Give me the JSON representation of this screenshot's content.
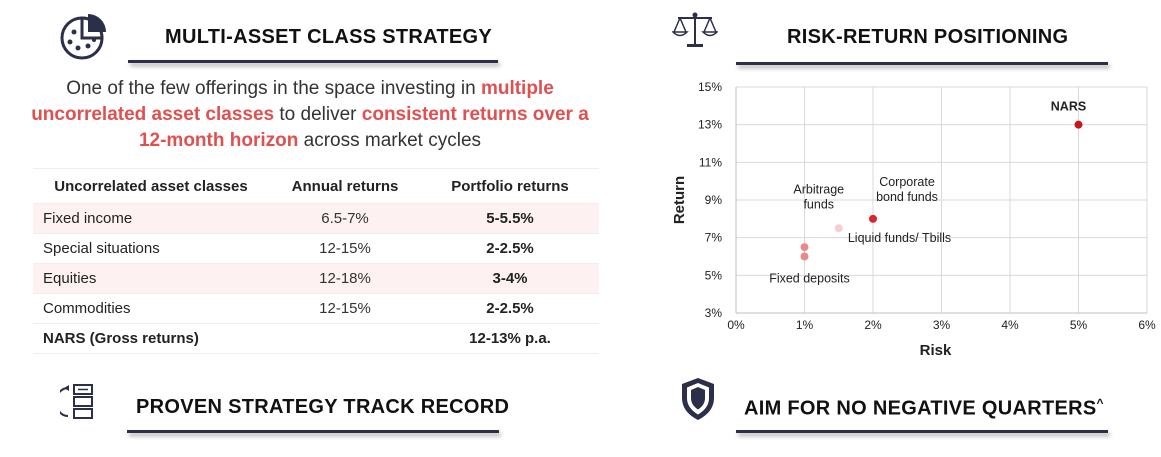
{
  "left_panel": {
    "heading": "MULTI-ASSET CLASS STRATEGY",
    "intro": {
      "t1": "One of the few offerings in the space investing in ",
      "h1": "multiple uncorrelated asset classes",
      "t2": " to deliver ",
      "h2": "consistent returns over a 12-month horizon",
      "t3": " across market cycles"
    },
    "table": {
      "headers": [
        "Uncorrelated asset classes",
        "Annual returns",
        "Portfolio returns"
      ],
      "rows": [
        {
          "asset": "Fixed income",
          "annual": "6.5-7%",
          "portfolio": "5-5.5%"
        },
        {
          "asset": "Special situations",
          "annual": "12-15%",
          "portfolio": "2-2.5%"
        },
        {
          "asset": "Equities",
          "annual": "12-18%",
          "portfolio": "3-4%"
        },
        {
          "asset": "Commodities",
          "annual": "12-15%",
          "portfolio": "2-2.5%"
        }
      ],
      "footer": {
        "label": "NARS (Gross returns)",
        "annual": "",
        "portfolio": "12-13% p.a."
      }
    }
  },
  "right_panel": {
    "heading": "RISK-RETURN POSITIONING"
  },
  "bottom_left": {
    "heading": "PROVEN STRATEGY TRACK RECORD"
  },
  "bottom_right": {
    "heading": "AIM FOR NO NEGATIVE QUARTERS",
    "superscript": "^"
  },
  "icons": {
    "top_left": "pie-chart-icon",
    "top_right": "balance-scale-icon",
    "bottom_left": "track-record-icon",
    "bottom_right": "shield-icon"
  },
  "chart_data": {
    "type": "scatter",
    "title": "",
    "xlabel": "Risk",
    "ylabel": "Return",
    "xlim": [
      0,
      6
    ],
    "ylim": [
      3,
      15
    ],
    "xticks": [
      0,
      1,
      2,
      3,
      4,
      5,
      6
    ],
    "yticks": [
      3,
      5,
      7,
      9,
      11,
      13,
      15
    ],
    "x_tick_labels": [
      "0%",
      "1%",
      "2%",
      "3%",
      "4%",
      "5%",
      "6%"
    ],
    "y_tick_labels": [
      "3%",
      "5%",
      "7%",
      "9%",
      "11%",
      "13%",
      "15%"
    ],
    "grid": true,
    "points": [
      {
        "label": "Fixed deposits",
        "x": 1.0,
        "y": 6.0,
        "color": "#e88a8a"
      },
      {
        "label": "Liquid funds/ Tbills",
        "x": 1.0,
        "y": 6.5,
        "color": "#e88a8a"
      },
      {
        "label": "Arbitrage funds",
        "x": 1.5,
        "y": 7.5,
        "color": "#f6d0d0"
      },
      {
        "label": "Corporate bond funds",
        "x": 2.0,
        "y": 8.0,
        "color": "#d9262c"
      },
      {
        "label": "NARS",
        "x": 5.0,
        "y": 13.0,
        "color": "#c8161d"
      }
    ]
  }
}
